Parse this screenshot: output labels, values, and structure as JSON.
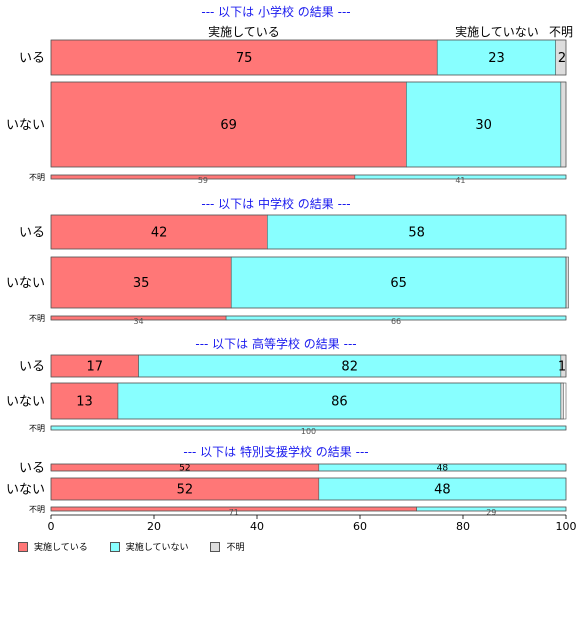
{
  "chart_data": {
    "type": "bar",
    "orientation": "horizontal-stacked-percent",
    "xlim": [
      0,
      100
    ],
    "x_ticks": [
      "0",
      "20",
      "40",
      "60",
      "80",
      "100"
    ],
    "colors": {
      "実施している": "#ff7777",
      "実施していない": "#88ffff",
      "不明": "#dddddd"
    },
    "legend": [
      "実施している",
      "実施していない",
      "不明"
    ],
    "series_names": [
      "実施している",
      "実施していない",
      "不明"
    ],
    "top_column_labels": [
      "実施している",
      "実施していない",
      "不明"
    ],
    "panels": [
      {
        "title": "--- 以下は 小学校 の結果 ---",
        "rows": [
          {
            "label": "いる",
            "values": [
              75,
              23,
              2
            ],
            "size": "large",
            "labels": [
              "75",
              "23",
              "2"
            ]
          },
          {
            "label": "いない",
            "values": [
              69,
              30,
              1
            ],
            "size": "large",
            "labels": [
              "69",
              "30",
              ""
            ]
          },
          {
            "label": "不明",
            "values": [
              59,
              41,
              0
            ],
            "size": "small",
            "labels": [
              "59",
              "41",
              ""
            ]
          }
        ]
      },
      {
        "title": "--- 以下は 中学校 の結果 ---",
        "rows": [
          {
            "label": "いる",
            "values": [
              42,
              58,
              0
            ],
            "size": "large",
            "labels": [
              "42",
              "58",
              ""
            ]
          },
          {
            "label": "いない",
            "values": [
              35,
              65,
              0.5
            ],
            "size": "large",
            "labels": [
              "35",
              "65",
              ""
            ]
          },
          {
            "label": "不明",
            "values": [
              34,
              66,
              0
            ],
            "size": "small",
            "labels": [
              "34",
              "66",
              ""
            ]
          }
        ]
      },
      {
        "title": "--- 以下は 高等学校 の結果 ---",
        "rows": [
          {
            "label": "いる",
            "values": [
              17,
              82,
              1
            ],
            "size": "large",
            "labels": [
              "17",
              "82",
              "1"
            ]
          },
          {
            "label": "いない",
            "values": [
              13,
              86,
              0.5
            ],
            "size": "large",
            "labels": [
              "13",
              "86",
              ""
            ]
          },
          {
            "label": "不明",
            "values": [
              0,
              100,
              0
            ],
            "size": "small",
            "labels": [
              "",
              "100",
              ""
            ]
          }
        ]
      },
      {
        "title": "--- 以下は 特別支援学校 の結果 ---",
        "rows": [
          {
            "label": "いる",
            "values": [
              52,
              48,
              0
            ],
            "size": "medium",
            "labels": [
              "52",
              "48",
              ""
            ]
          },
          {
            "label": "いない",
            "values": [
              52,
              48,
              0
            ],
            "size": "large",
            "labels": [
              "52",
              "48",
              ""
            ]
          },
          {
            "label": "不明",
            "values": [
              71,
              29,
              0
            ],
            "size": "small",
            "labels": [
              "71",
              "29",
              ""
            ]
          }
        ]
      }
    ]
  }
}
